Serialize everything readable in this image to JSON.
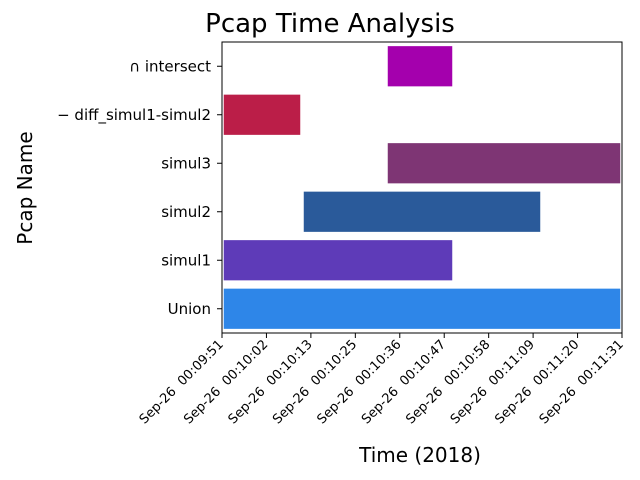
{
  "chart_data": {
    "type": "bar",
    "orientation": "horizontal",
    "title": "Pcap Time Analysis",
    "xlabel": "Time (2018)",
    "ylabel": "Pcap Name",
    "x_ticks": [
      "Sep-26  00:09:51",
      "Sep-26  00:10:02",
      "Sep-26  00:10:13",
      "Sep-26  00:10:25",
      "Sep-26  00:10:36",
      "Sep-26  00:10:47",
      "Sep-26  00:10:58",
      "Sep-26  00:11:09",
      "Sep-26  00:11:20",
      "Sep-26  00:11:31"
    ],
    "xlim": [
      "2018-09-26 00:09:51",
      "2018-09-26 00:11:31"
    ],
    "grid": false,
    "legend": false,
    "bars": [
      {
        "label": "Union",
        "start": "2018-09-26 00:09:51",
        "end": "2018-09-26 00:11:31",
        "color": "#2e86e8"
      },
      {
        "label": "simul1",
        "start": "2018-09-26 00:09:51",
        "end": "2018-09-26 00:10:49",
        "color": "#5e3bb8"
      },
      {
        "label": "simul2",
        "start": "2018-09-26 00:10:11",
        "end": "2018-09-26 00:11:11",
        "color": "#2a5a9a"
      },
      {
        "label": "simul3",
        "start": "2018-09-26 00:10:32",
        "end": "2018-09-26 00:11:31",
        "color": "#7e3574"
      },
      {
        "label": "− diff_simul1-simul2",
        "start": "2018-09-26 00:09:51",
        "end": "2018-09-26 00:10:11",
        "color": "#bb1e48"
      },
      {
        "label": "∩ intersect",
        "start": "2018-09-26 00:10:32",
        "end": "2018-09-26 00:10:49",
        "color": "#a400ad"
      }
    ]
  }
}
